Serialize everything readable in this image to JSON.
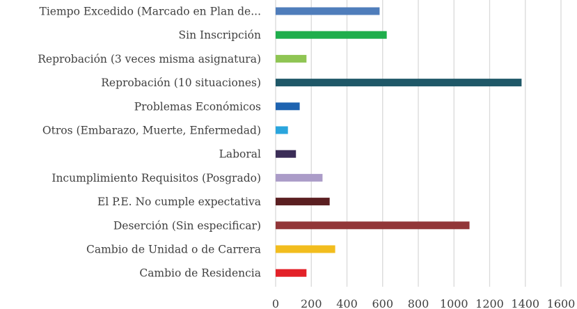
{
  "chart_data": {
    "type": "bar",
    "orientation": "horizontal",
    "title": "",
    "xlabel": "",
    "ylabel": "",
    "xlim": [
      0,
      1600
    ],
    "x_ticks": [
      "0",
      "200",
      "400",
      "600",
      "800",
      "1000",
      "1200",
      "1400",
      "1600"
    ],
    "grid": "vertical",
    "legend": "none",
    "categories": [
      "Tiempo Excedido (Marcado en Plan de...",
      "Sin Inscripción",
      "Reprobación (3 veces misma asignatura)",
      "Reprobación (10 situaciones)",
      "Problemas Económicos",
      "Otros (Embarazo, Muerte, Enfermedad)",
      "Laboral",
      "Incumplimiento Requisitos (Posgrado)",
      "El P.E. No cumple expectativa",
      "Deserción (Sin especificar)",
      "Cambio de Unidad o de Carrera",
      "Cambio de Residencia"
    ],
    "values": [
      583,
      623,
      173,
      1379,
      135,
      69,
      114,
      263,
      303,
      1087,
      334,
      173
    ],
    "colors": [
      "#4f7dbb",
      "#1fae4c",
      "#8fc553",
      "#1f5868",
      "#1e63b0",
      "#2aa5dd",
      "#3b2d57",
      "#ab9cc8",
      "#5b1f21",
      "#923638",
      "#f2bd1e",
      "#e32128"
    ]
  }
}
